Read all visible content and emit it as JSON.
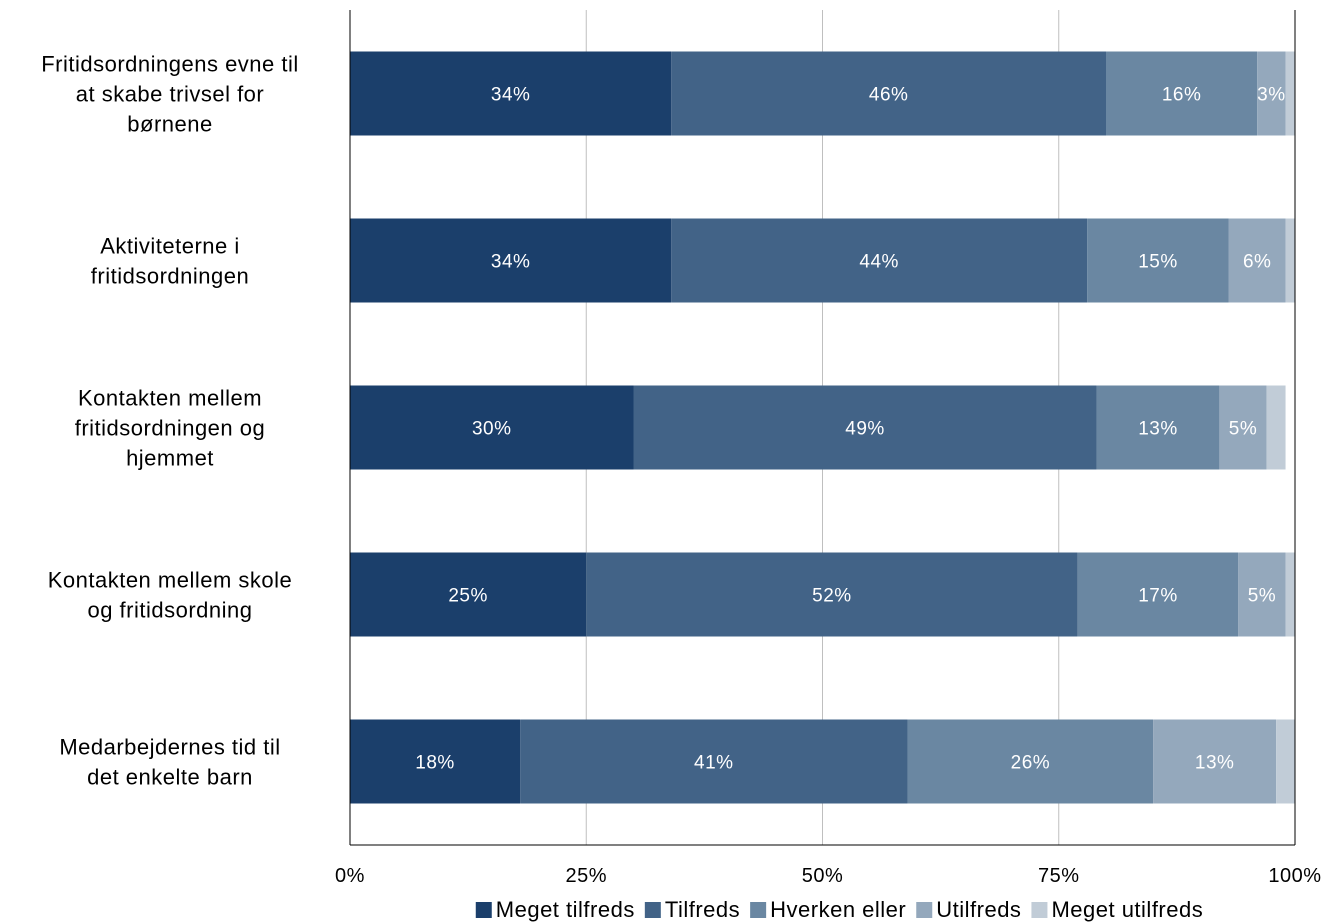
{
  "chart_data": {
    "type": "bar",
    "orientation": "horizontal",
    "stacked": true,
    "title": "",
    "xlabel": "",
    "ylabel": "",
    "xlim": [
      0,
      100
    ],
    "x_ticks": [
      "0%",
      "25%",
      "50%",
      "75%",
      "100%"
    ],
    "grid": true,
    "legend_position": "bottom",
    "categories": [
      [
        "Fritidsordningens evne til",
        "at skabe trivsel for",
        "børnene"
      ],
      [
        "Aktiviteterne i",
        "fritidsordningen"
      ],
      [
        "Kontakten mellem",
        "fritidsordningen og",
        "hjemmet"
      ],
      [
        "Kontakten mellem skole",
        "og fritidsordning"
      ],
      [
        "Medarbejdernes tid til",
        "det enkelte barn"
      ]
    ],
    "series": [
      {
        "name": "Meget tilfreds",
        "color": "#1b3f6b",
        "values": [
          34,
          34,
          30,
          25,
          18
        ],
        "labels": [
          "34%",
          "34%",
          "30%",
          "25%",
          "18%"
        ]
      },
      {
        "name": "Tilfreds",
        "color": "#426387",
        "values": [
          46,
          44,
          49,
          52,
          41
        ],
        "labels": [
          "46%",
          "44%",
          "49%",
          "52%",
          "41%"
        ]
      },
      {
        "name": "Hverken eller",
        "color": "#6a87a2",
        "values": [
          16,
          15,
          13,
          17,
          26
        ],
        "labels": [
          "16%",
          "15%",
          "13%",
          "17%",
          "26%"
        ]
      },
      {
        "name": "Utilfreds",
        "color": "#94a8bc",
        "values": [
          3,
          6,
          5,
          5,
          13
        ],
        "labels": [
          "3%",
          "6%",
          "5%",
          "5%",
          "13%"
        ]
      },
      {
        "name": "Meget utilfreds",
        "color": "#c1ccd7",
        "values": [
          1,
          1,
          2,
          1,
          3
        ],
        "labels": [
          "",
          "",
          "",
          "",
          ""
        ]
      }
    ]
  }
}
